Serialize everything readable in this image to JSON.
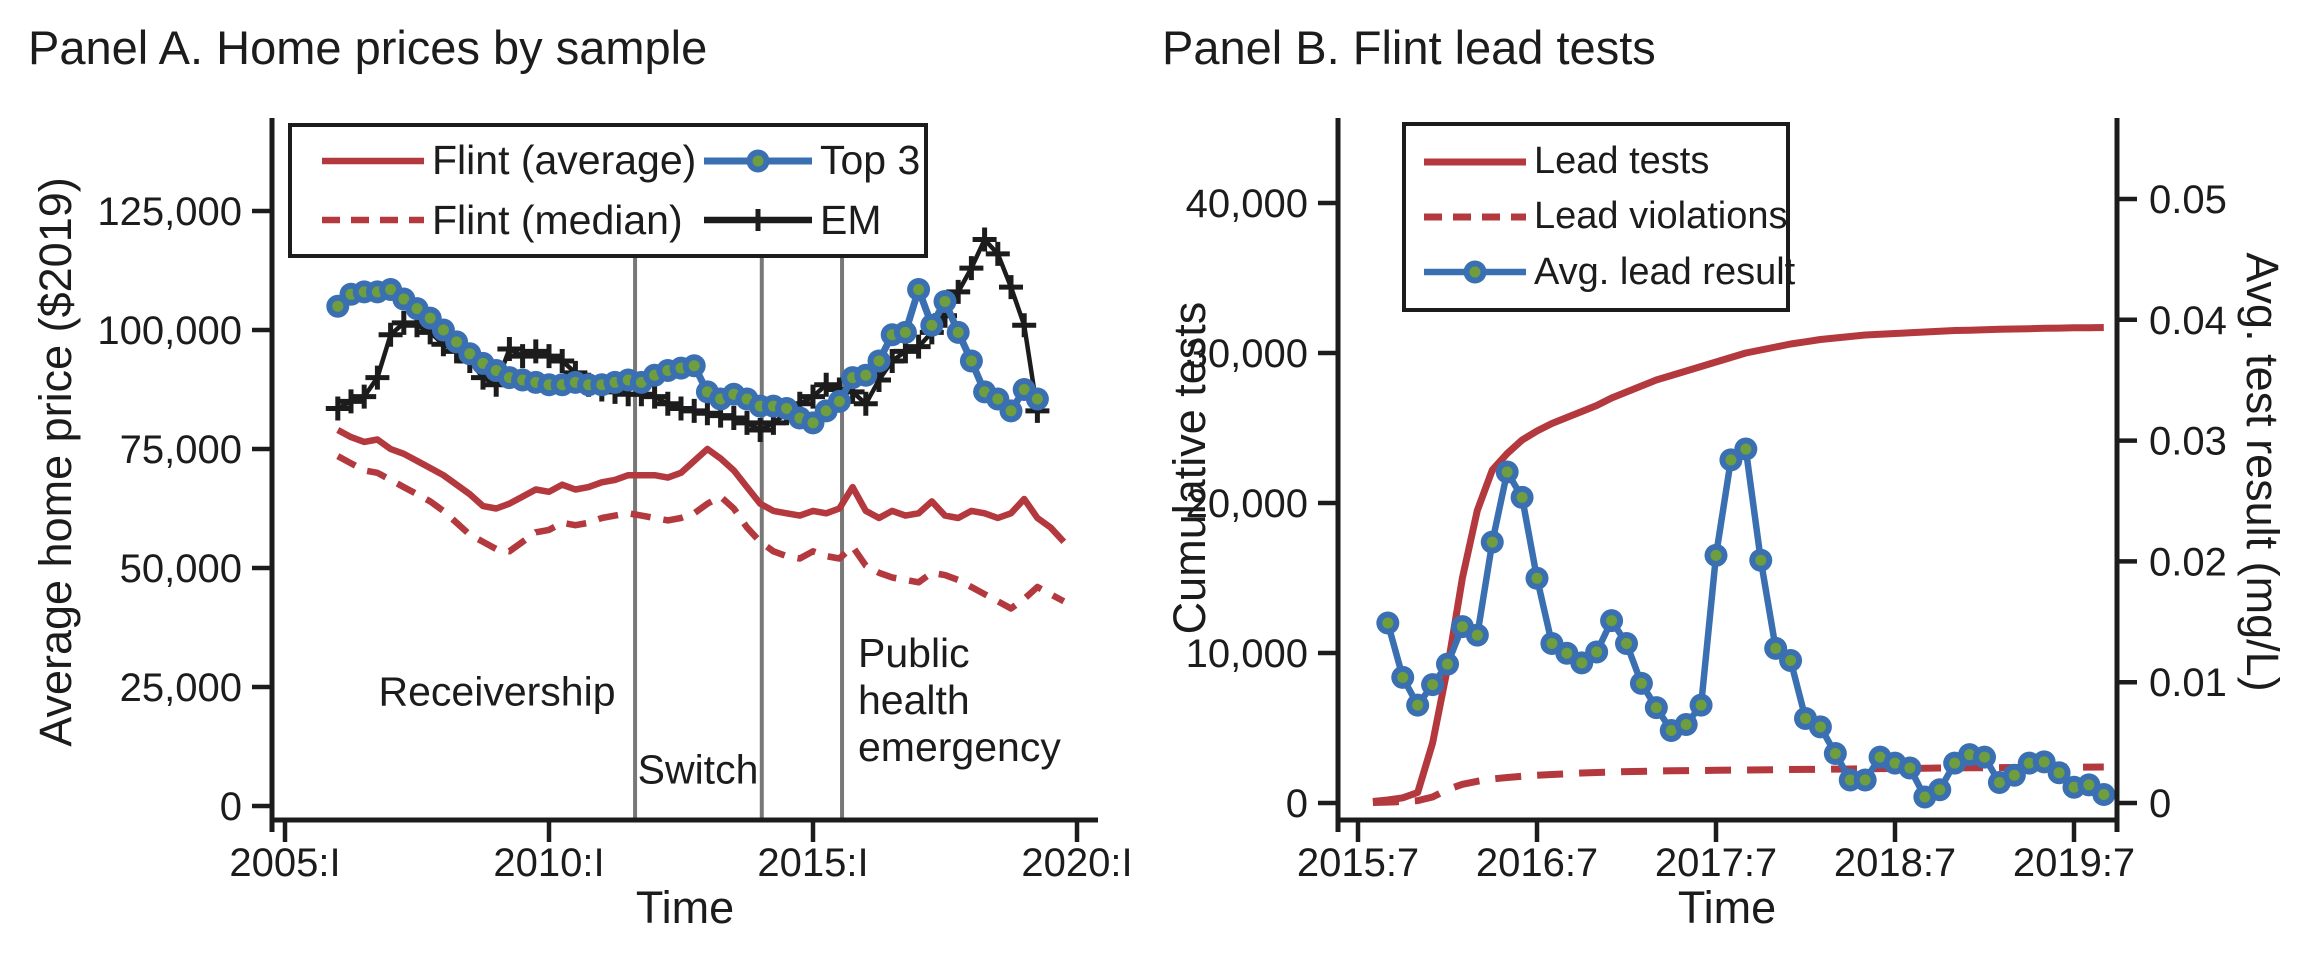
{
  "colors": {
    "red": "#b4393e",
    "blue": "#3a70b2",
    "marker_green": "#6f9e3f",
    "black": "#1c1c1c",
    "event_gray": "#787878"
  },
  "panelA": {
    "title": "Panel A. Home prices by sample",
    "ylabel": "Average home price ($2019)",
    "xlabel": "Time",
    "legend": [
      "Flint (average)",
      "Flint (median)",
      "Top 3",
      "EM"
    ],
    "annotations": {
      "receivership": "Receivership",
      "switch": "Switch",
      "phe": [
        "Public",
        "health",
        "emergency"
      ]
    }
  },
  "panelB": {
    "title": "Panel B. Flint lead tests",
    "ylabel_left": "Cumulative tests",
    "ylabel_right": "Avg. test result (mg/L)",
    "xlabel": "Time",
    "legend": [
      "Lead tests",
      "Lead violations",
      "Avg. lead result"
    ]
  },
  "chart_data": [
    {
      "type": "line",
      "title": "Panel A. Home prices by sample",
      "xlabel": "Time",
      "ylabel": "Average home price ($2019)",
      "x_unit": "quarterly, decimal years",
      "xlim": [
        2004.75,
        2020.4
      ],
      "ylim": [
        0,
        137000
      ],
      "x_tick_values": [
        2005,
        2010,
        2015,
        2020
      ],
      "x_tick_labels": [
        "2005:I",
        "2010:I",
        "2015:I",
        "2020:I"
      ],
      "y_tick_values": [
        0,
        25000,
        50000,
        75000,
        100000,
        125000
      ],
      "y_tick_labels": [
        "0",
        "25,000",
        "50,000",
        "75,000",
        "100,000",
        "125,000"
      ],
      "grid": false,
      "legend_position": "top-left-inside",
      "event_lines": [
        {
          "x": 2011.63,
          "label": "Receivership"
        },
        {
          "x": 2014.03,
          "label": "Switch"
        },
        {
          "x": 2015.55,
          "label": "Public health emergency"
        }
      ],
      "series": [
        {
          "id": "flint_average",
          "name": "Flint (average)",
          "style": "solid-red",
          "start": 2006.0,
          "step": 0.25,
          "values": [
            79000,
            77500,
            76500,
            77000,
            75000,
            74000,
            72500,
            71000,
            69500,
            67500,
            65500,
            63000,
            62500,
            63500,
            65000,
            66500,
            66000,
            67500,
            66500,
            67000,
            68000,
            68500,
            69500,
            69500,
            69500,
            69000,
            70000,
            72500,
            75000,
            73000,
            70500,
            67000,
            63500,
            62000,
            61500,
            61000,
            62000,
            61500,
            62500,
            67000,
            62000,
            60500,
            62000,
            61000,
            61500,
            64000,
            61000,
            60500,
            62000,
            61500,
            60500,
            61500,
            64500,
            60500,
            58500,
            55500
          ]
        },
        {
          "id": "flint_median",
          "name": "Flint (median)",
          "style": "dashed-red",
          "start": 2006.0,
          "step": 0.25,
          "values": [
            73500,
            72000,
            70500,
            70000,
            68500,
            67000,
            65500,
            64000,
            62000,
            59500,
            57000,
            55500,
            54000,
            53500,
            55500,
            57500,
            58000,
            59500,
            59000,
            59500,
            60500,
            61000,
            61500,
            61000,
            60500,
            60000,
            60500,
            61500,
            63500,
            65000,
            62500,
            58500,
            55500,
            53500,
            52500,
            52000,
            53500,
            52500,
            52000,
            54500,
            50500,
            49000,
            48000,
            47500,
            47000,
            49000,
            48500,
            47500,
            46000,
            44500,
            43000,
            41500,
            43500,
            46000,
            44500,
            43000
          ]
        },
        {
          "id": "top3",
          "name": "Top 3",
          "style": "blue-dot-markers",
          "start": 2006.0,
          "step": 0.25,
          "values": [
            105000,
            107500,
            108000,
            108000,
            108500,
            106500,
            104500,
            102500,
            100000,
            97500,
            95000,
            93000,
            91500,
            90000,
            89500,
            89000,
            88500,
            88500,
            89000,
            88500,
            88500,
            89000,
            89500,
            89000,
            90500,
            91500,
            92000,
            92500,
            87000,
            85500,
            86500,
            85500,
            84000,
            84000,
            83500,
            81500,
            80500,
            83000,
            85000,
            90000,
            90500,
            93500,
            99000,
            99500,
            108500,
            101000,
            106000,
            99500,
            93500,
            87000,
            85500,
            83000,
            87500,
            85500
          ]
        },
        {
          "id": "em",
          "name": "EM",
          "style": "black-plus-markers",
          "start": 2006.0,
          "step": 0.25,
          "values": [
            83500,
            85000,
            86000,
            90000,
            99000,
            101500,
            101000,
            99500,
            97000,
            95500,
            93500,
            90000,
            88500,
            96000,
            94500,
            95500,
            94500,
            93500,
            91000,
            88500,
            87500,
            87000,
            86500,
            86500,
            86000,
            84500,
            83500,
            83000,
            82500,
            82000,
            81500,
            80500,
            79000,
            80500,
            82500,
            84500,
            86000,
            88500,
            87500,
            87000,
            84500,
            89500,
            93500,
            95500,
            96500,
            99500,
            103000,
            108000,
            113000,
            119000,
            116000,
            109000,
            101000,
            83000
          ]
        }
      ]
    },
    {
      "type": "line",
      "title": "Panel B. Flint lead tests",
      "xlabel": "Time",
      "ylabel_left": "Cumulative tests",
      "ylabel_right": "Avg. test result (mg/L)",
      "x_unit": "monthly, decimal years",
      "xlim": [
        2015.45,
        2019.85
      ],
      "ylim_left": [
        0,
        44000
      ],
      "ylim_right": [
        0,
        0.055
      ],
      "x_tick_values": [
        2015.5,
        2016.5,
        2017.5,
        2018.5,
        2019.5
      ],
      "x_tick_labels": [
        "2015:7",
        "2016:7",
        "2017:7",
        "2018:7",
        "2019:7"
      ],
      "y_tick_values_left": [
        0,
        10000,
        20000,
        30000,
        40000
      ],
      "y_tick_labels_left": [
        "0",
        "10,000",
        "20,000",
        "30,000",
        "40,000"
      ],
      "y_tick_values_right": [
        0,
        0.01,
        0.02,
        0.03,
        0.04,
        0.05
      ],
      "y_tick_labels_right": [
        "0",
        "0.01",
        "0.02",
        "0.03",
        "0.04",
        "0.05"
      ],
      "grid": false,
      "legend_position": "top-left-inside",
      "series": [
        {
          "id": "lead_tests",
          "name": "Lead tests",
          "style": "solid-red",
          "axis": "left",
          "start_year": 2015,
          "start_month": 8,
          "values": [
            100,
            200,
            350,
            700,
            4000,
            9000,
            15000,
            19500,
            22200,
            23300,
            24200,
            24800,
            25300,
            25700,
            26100,
            26500,
            27000,
            27400,
            27800,
            28200,
            28500,
            28800,
            29100,
            29400,
            29700,
            30000,
            30200,
            30400,
            30600,
            30750,
            30900,
            31000,
            31100,
            31200,
            31250,
            31300,
            31350,
            31400,
            31450,
            31500,
            31520,
            31550,
            31580,
            31600,
            31620,
            31650,
            31660,
            31680,
            31690,
            31700
          ]
        },
        {
          "id": "lead_violations",
          "name": "Lead violations",
          "style": "dashed-red",
          "axis": "left",
          "start_year": 2015,
          "start_month": 8,
          "values": [
            30,
            60,
            100,
            160,
            400,
            900,
            1250,
            1450,
            1600,
            1700,
            1780,
            1850,
            1900,
            1950,
            2000,
            2030,
            2060,
            2090,
            2110,
            2130,
            2150,
            2160,
            2170,
            2180,
            2190,
            2200,
            2210,
            2220,
            2230,
            2240,
            2250,
            2260,
            2270,
            2280,
            2290,
            2300,
            2310,
            2320,
            2330,
            2340,
            2350,
            2355,
            2360,
            2365,
            2370,
            2375,
            2380,
            2385,
            2390,
            2400
          ]
        },
        {
          "id": "avg_lead",
          "name": "Avg. lead result",
          "style": "blue-dot-markers",
          "axis": "right",
          "start_year": 2015,
          "start_month": 9,
          "values": [
            0.0149,
            0.0104,
            0.0081,
            0.0098,
            0.0115,
            0.0146,
            0.0139,
            0.0216,
            0.0274,
            0.0253,
            0.0186,
            0.0132,
            0.0124,
            0.0116,
            0.0125,
            0.0151,
            0.0132,
            0.0099,
            0.0079,
            0.006,
            0.0065,
            0.0081,
            0.0205,
            0.0284,
            0.0293,
            0.0201,
            0.0128,
            0.0118,
            0.007,
            0.0063,
            0.0041,
            0.0019,
            0.0019,
            0.0038,
            0.0033,
            0.0029,
            0.0005,
            0.0011,
            0.0033,
            0.004,
            0.0038,
            0.0017,
            0.0023,
            0.0033,
            0.0034,
            0.0025,
            0.0013,
            0.0015,
            0.0007
          ]
        }
      ]
    }
  ]
}
